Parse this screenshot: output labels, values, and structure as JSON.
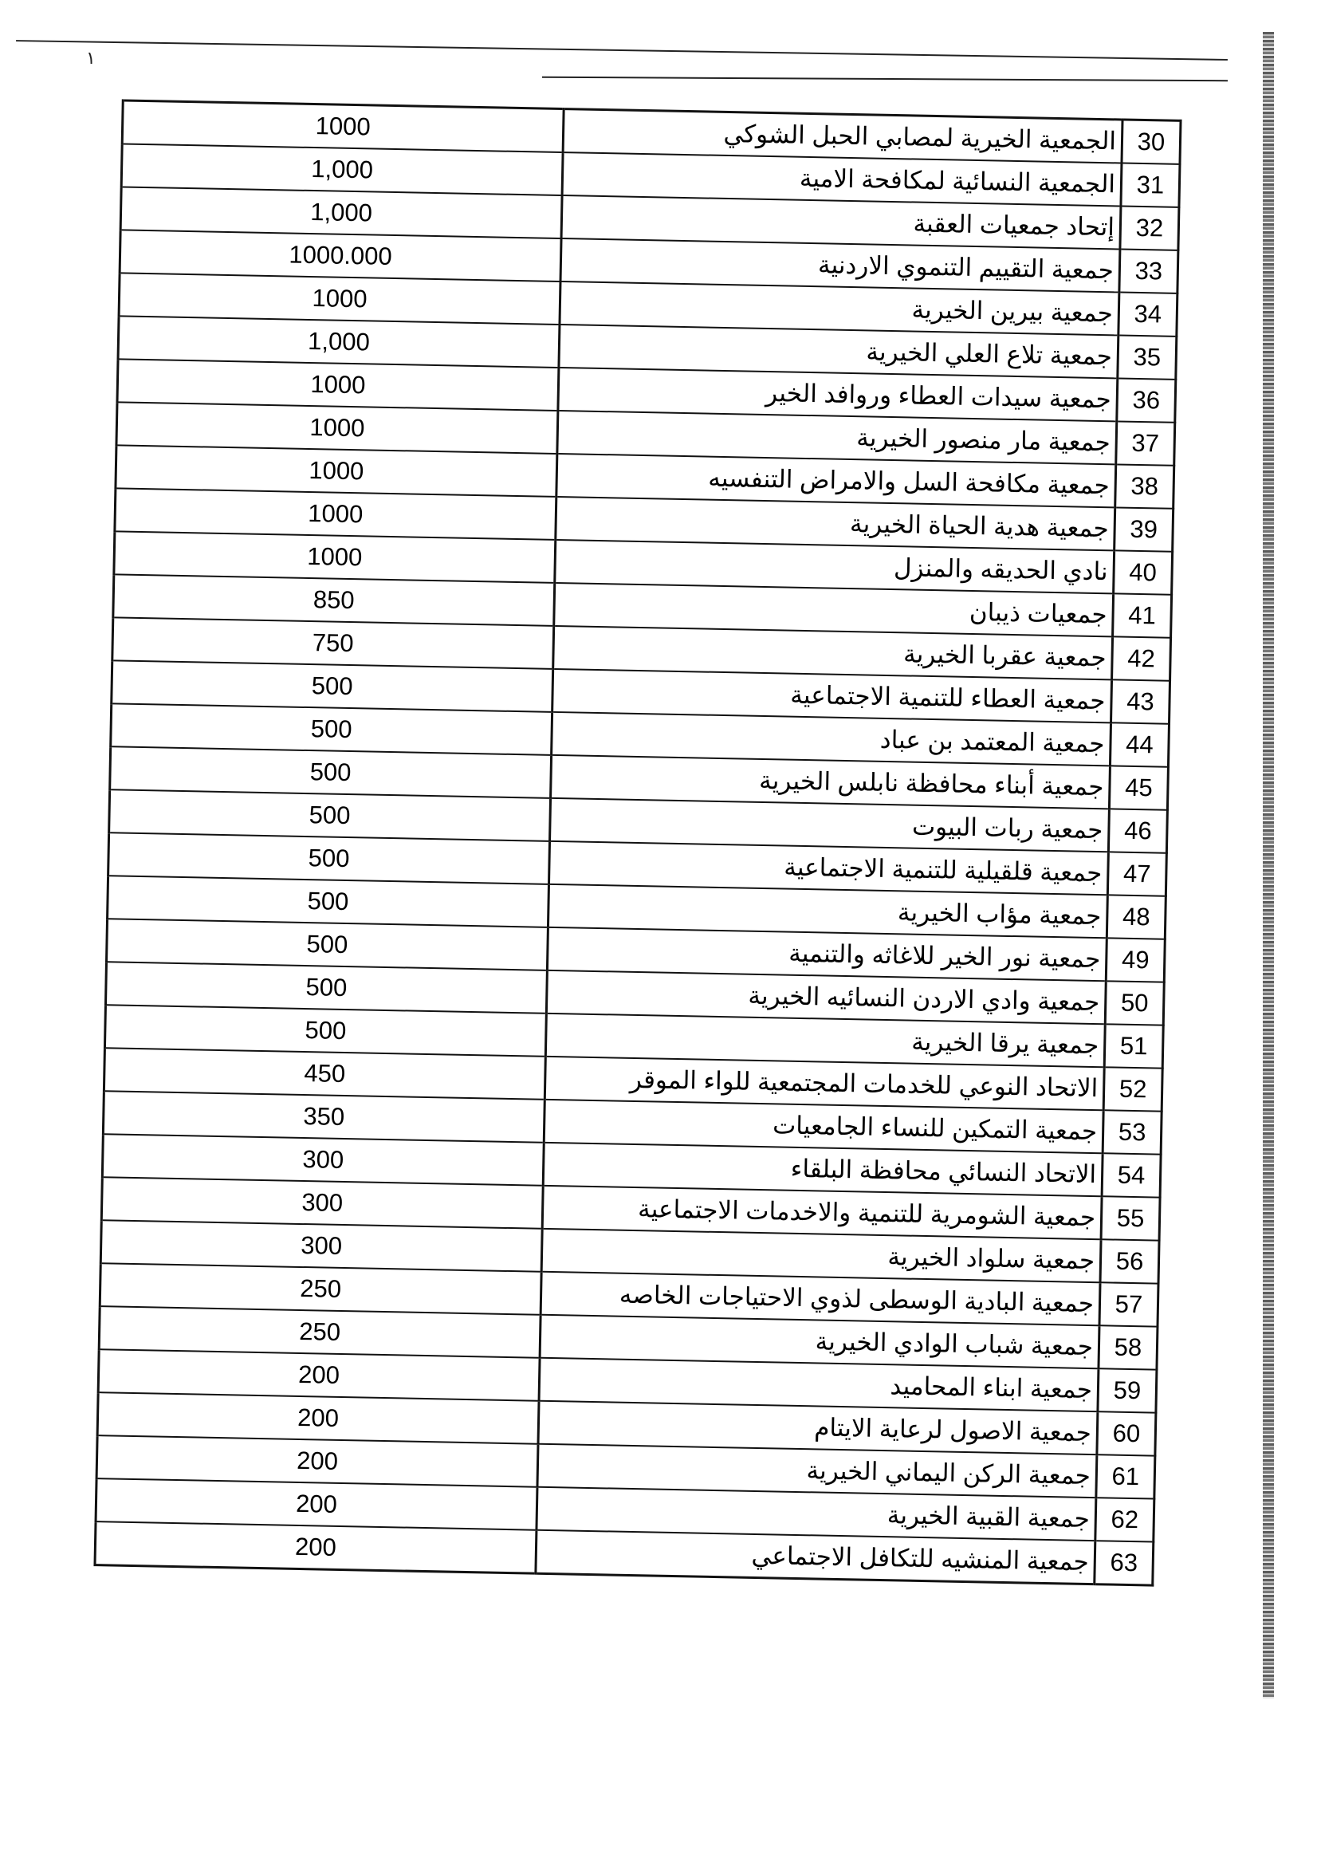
{
  "header_mark": "١",
  "rows": [
    {
      "num": "30",
      "name": "الجمعية الخيرية لمصابي الحبل الشوكي",
      "amount": "1000"
    },
    {
      "num": "31",
      "name": "الجمعية النسائية لمكافحة الامية",
      "amount": "1,000"
    },
    {
      "num": "32",
      "name": "إتحاد جمعيات العقبة",
      "amount": "1,000"
    },
    {
      "num": "33",
      "name": "جمعية التقييم التنموي الاردنية",
      "amount": "1000.000"
    },
    {
      "num": "34",
      "name": "جمعية بيرين الخيرية",
      "amount": "1000"
    },
    {
      "num": "35",
      "name": "جمعية تلاع العلي الخيرية",
      "amount": "1,000"
    },
    {
      "num": "36",
      "name": "جمعية سيدات العطاء وروافد الخير",
      "amount": "1000"
    },
    {
      "num": "37",
      "name": "جمعية مار منصور الخيرية",
      "amount": "1000"
    },
    {
      "num": "38",
      "name": "جمعية مكافحة السل والامراض التنفسيه",
      "amount": "1000"
    },
    {
      "num": "39",
      "name": "جمعية هدية الحياة الخيرية",
      "amount": "1000"
    },
    {
      "num": "40",
      "name": "نادي الحديقه والمنزل",
      "amount": "1000"
    },
    {
      "num": "41",
      "name": "جمعيات ذيبان",
      "amount": "850"
    },
    {
      "num": "42",
      "name": "جمعية عقربا الخيرية",
      "amount": "750"
    },
    {
      "num": "43",
      "name": "جمعية العطاء للتنمية الاجتماعية",
      "amount": "500"
    },
    {
      "num": "44",
      "name": "جمعية المعتمد بن عباد",
      "amount": "500"
    },
    {
      "num": "45",
      "name": "جمعية أبناء محافظة نابلس الخيرية",
      "amount": "500"
    },
    {
      "num": "46",
      "name": "جمعية ربات البيوت",
      "amount": "500"
    },
    {
      "num": "47",
      "name": "جمعية قلقيلية للتنمية الاجتماعية",
      "amount": "500"
    },
    {
      "num": "48",
      "name": "جمعية مؤاب الخيرية",
      "amount": "500"
    },
    {
      "num": "49",
      "name": "جمعية نور الخير للاغاثه والتنمية",
      "amount": "500"
    },
    {
      "num": "50",
      "name": "جمعية وادي الاردن النسائيه الخيرية",
      "amount": "500"
    },
    {
      "num": "51",
      "name": "جمعية يرقا الخيرية",
      "amount": "500"
    },
    {
      "num": "52",
      "name": "الاتحاد النوعي للخدمات المجتمعية للواء الموقر",
      "amount": "450"
    },
    {
      "num": "53",
      "name": "جمعية التمكين للنساء الجامعيات",
      "amount": "350"
    },
    {
      "num": "54",
      "name": "الاتحاد النسائي محافظة البلقاء",
      "amount": "300"
    },
    {
      "num": "55",
      "name": "جمعية الشومرية للتنمية والاخدمات الاجتماعية",
      "amount": "300"
    },
    {
      "num": "56",
      "name": "جمعية سلواد الخيرية",
      "amount": "300"
    },
    {
      "num": "57",
      "name": "جمعية البادية الوسطى لذوي الاحتياجات الخاصه",
      "amount": "250"
    },
    {
      "num": "58",
      "name": "جمعية شباب الوادي الخيرية",
      "amount": "250"
    },
    {
      "num": "59",
      "name": "جمعية ابناء المحاميد",
      "amount": "200"
    },
    {
      "num": "60",
      "name": "جمعية الاصول لرعاية الايتام",
      "amount": "200"
    },
    {
      "num": "61",
      "name": "جمعية الركن اليماني الخيرية",
      "amount": "200"
    },
    {
      "num": "62",
      "name": "جمعية القبية الخيرية",
      "amount": "200"
    },
    {
      "num": "63",
      "name": "جمعية المنشيه للتكافل الاجتماعي",
      "amount": "200"
    }
  ]
}
